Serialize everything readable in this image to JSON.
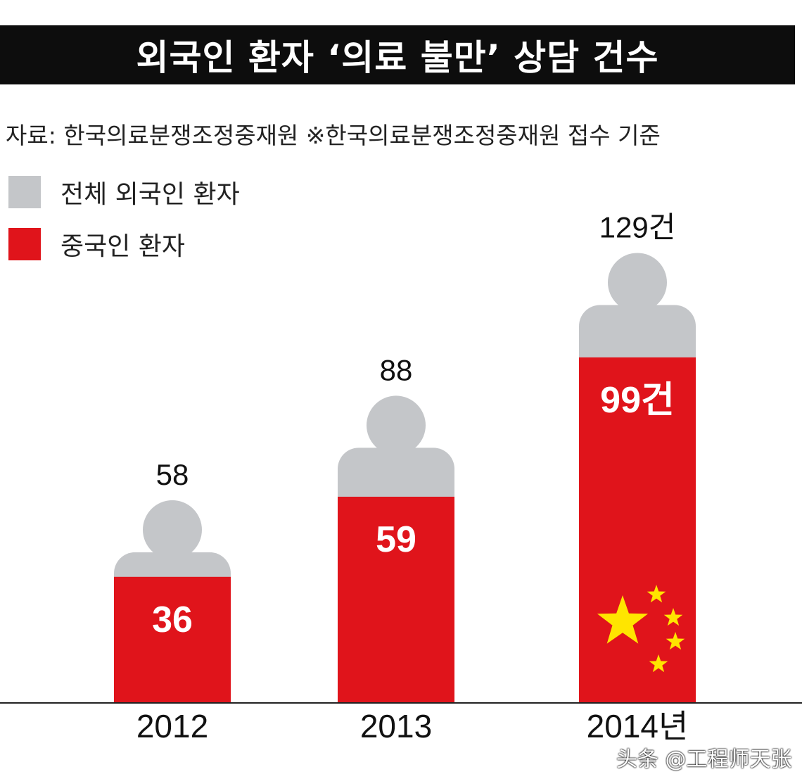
{
  "title": "외국인 환자 ‘의료 불만’ 상담 건수",
  "source": "자료: 한국의료분쟁조정중재원 ※한국의료분쟁조정중재원 접수 기준",
  "watermark": "头条 @工程师天张",
  "colors": {
    "total": "#c4c6c9",
    "chinese": "#e0141b",
    "star": "#ffe500"
  },
  "chart_data": {
    "type": "bar",
    "title": "외국인 환자 ‘의료 불만’ 상담 건수",
    "categories": [
      "2012",
      "2013",
      "2014년"
    ],
    "series": [
      {
        "name": "전체 외국인 환자",
        "values": [
          58,
          88,
          129
        ],
        "labels": [
          "58",
          "88",
          "129건"
        ]
      },
      {
        "name": "중국인 환자",
        "values": [
          36,
          59,
          99
        ],
        "labels": [
          "36",
          "59",
          "99건"
        ]
      }
    ],
    "legend": "top-left",
    "ylim": [
      0,
      140
    ],
    "grid": false
  }
}
